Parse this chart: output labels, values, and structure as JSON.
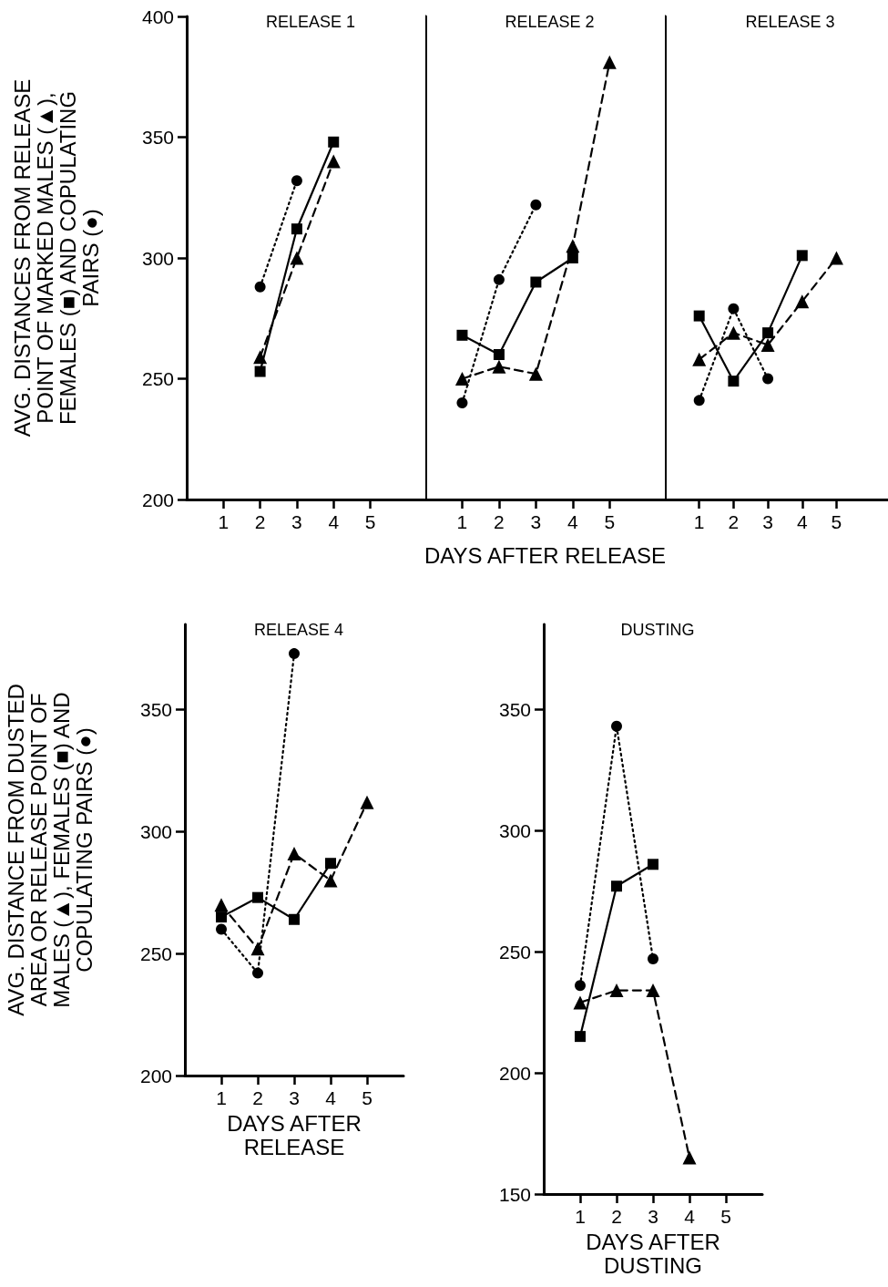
{
  "chart_data": [
    {
      "type": "line",
      "title": "RELEASE 1",
      "ylabel": "AVG. DISTANCES FROM RELEASE POINT OF MARKED MALES (▲), FEMALES (■) AND COPULATING PAIRS (●)",
      "x": [
        2,
        3,
        4
      ],
      "xlim": [
        0,
        6.5
      ],
      "xticks": [
        1,
        2,
        3,
        4,
        5
      ],
      "ylim": [
        200,
        400
      ],
      "yticks": [
        200,
        250,
        300,
        350,
        400
      ],
      "grid": false,
      "series": [
        {
          "color": "#000000",
          "marker": "triangle",
          "line_style": "dashed",
          "values": [
            259,
            300,
            340
          ]
        },
        {
          "color": "#000000",
          "marker": "square",
          "line_style": "solid",
          "values": [
            253,
            312,
            348
          ]
        },
        {
          "color": "#000000",
          "marker": "circle",
          "line_style": "dotted",
          "values": [
            288,
            332,
            null
          ]
        }
      ]
    },
    {
      "type": "line",
      "title": "RELEASE 2",
      "xlabel": "DAYS AFTER RELEASE",
      "x": [
        1,
        2,
        3,
        4,
        5
      ],
      "xlim": [
        0,
        6.5
      ],
      "xticks": [
        1,
        2,
        3,
        4,
        5
      ],
      "ylim": [
        200,
        400
      ],
      "yticks": [
        200,
        250,
        300,
        350,
        400
      ],
      "tick_labels": "x",
      "grid": false,
      "series": [
        {
          "color": "#000000",
          "marker": "triangle",
          "line_style": "dashed",
          "values": [
            250,
            255,
            252,
            305,
            381
          ]
        },
        {
          "color": "#000000",
          "marker": "square",
          "line_style": "solid",
          "values": [
            268,
            260,
            290,
            300,
            null
          ]
        },
        {
          "color": "#000000",
          "marker": "circle",
          "line_style": "dotted",
          "values": [
            240,
            291,
            322,
            null,
            null
          ]
        }
      ]
    },
    {
      "type": "line",
      "title": "RELEASE 3",
      "x": [
        1,
        2,
        3,
        4,
        5
      ],
      "xlim": [
        0,
        6.5
      ],
      "xticks": [
        1,
        2,
        3,
        4,
        5
      ],
      "ylim": [
        200,
        400
      ],
      "yticks": [
        200,
        250,
        300,
        350,
        400
      ],
      "tick_labels": "x",
      "grid": false,
      "series": [
        {
          "color": "#000000",
          "marker": "triangle",
          "line_style": "dashed",
          "values": [
            258,
            269,
            264,
            282,
            300
          ]
        },
        {
          "color": "#000000",
          "marker": "square",
          "line_style": "solid",
          "values": [
            276,
            249,
            269,
            301,
            null
          ]
        },
        {
          "color": "#000000",
          "marker": "circle",
          "line_style": "dotted",
          "values": [
            241,
            279,
            250,
            null,
            null
          ]
        }
      ]
    },
    {
      "type": "line",
      "title": "RELEASE 4",
      "xlabel": "DAYS AFTER RELEASE",
      "ylabel": "AVG. DISTANCE FROM DUSTED AREA OR RELEASE POINT OF MALES (▲), FEMALES (■) AND COPULATING PAIRS (●)",
      "x": [
        1,
        2,
        3,
        4,
        5
      ],
      "xlim": [
        0,
        6
      ],
      "xticks": [
        1,
        2,
        3,
        4,
        5
      ],
      "ylim": [
        200,
        385
      ],
      "yticks": [
        200,
        250,
        300,
        350
      ],
      "grid": false,
      "series": [
        {
          "color": "#000000",
          "marker": "triangle",
          "line_style": "dashed",
          "values": [
            270,
            252,
            291,
            280,
            312
          ]
        },
        {
          "color": "#000000",
          "marker": "square",
          "line_style": "solid",
          "values": [
            265,
            273,
            264,
            287,
            null
          ]
        },
        {
          "color": "#000000",
          "marker": "circle",
          "line_style": "dotted",
          "values": [
            260,
            242,
            373,
            null,
            null
          ]
        }
      ]
    },
    {
      "type": "line",
      "title": "DUSTING",
      "xlabel": "DAYS AFTER DUSTING",
      "x": [
        1,
        2,
        3,
        4
      ],
      "xlim": [
        0,
        6
      ],
      "xticks": [
        1,
        2,
        3,
        4,
        5
      ],
      "ylim": [
        150,
        385
      ],
      "yticks": [
        150,
        200,
        250,
        300,
        350
      ],
      "grid": false,
      "series": [
        {
          "color": "#000000",
          "marker": "triangle",
          "line_style": "dashed",
          "values": [
            229,
            234,
            234,
            165
          ]
        },
        {
          "color": "#000000",
          "marker": "square",
          "line_style": "solid",
          "values": [
            215,
            277,
            286,
            null
          ]
        },
        {
          "color": "#000000",
          "marker": "circle",
          "line_style": "dotted",
          "values": [
            236,
            343,
            247,
            null
          ]
        }
      ]
    }
  ]
}
